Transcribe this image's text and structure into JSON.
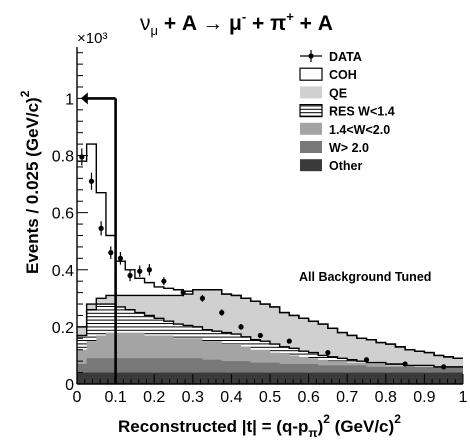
{
  "chart_data": {
    "type": "bar",
    "title_parts": {
      "nu": "ν",
      "nu_sub": "μ",
      "mid1": " + A → μ",
      "mu_sup": "-",
      "mid2": " + π",
      "pi_sup": "+",
      "end": " + A"
    },
    "xlabel_parts": {
      "main": "Reconstructed |t| = (q-p",
      "sub": "π",
      "close": ")",
      "sup": "2",
      "unit": " (GeV/c)",
      "unit_sup": "2"
    },
    "ylabel_parts": {
      "main": "Events / 0.025 (GeV/c)",
      "sup": "2"
    },
    "y_multiplier": "×10³",
    "annotation": "All Background Tuned",
    "xlim": [
      0,
      1.0
    ],
    "ylim": [
      0,
      1.18
    ],
    "x_ticks": [
      0,
      0.1,
      0.2,
      0.3,
      0.4,
      0.5,
      0.6,
      0.7,
      0.8,
      0.9,
      1.0
    ],
    "x_tick_labels": [
      "0",
      "0.1",
      "0.2",
      "0.3",
      "0.4",
      "0.5",
      "0.6",
      "0.7",
      "0.8",
      "0.9",
      "1"
    ],
    "y_ticks": [
      0,
      0.2,
      0.4,
      0.6,
      0.8,
      1.0
    ],
    "y_tick_labels": [
      "0",
      "0.2",
      "0.4",
      "0.6",
      "0.8",
      "1"
    ],
    "cut_x": 0.1,
    "grid": false,
    "legend_position": "top-right",
    "legend": [
      {
        "name": "DATA",
        "style": "marker"
      },
      {
        "name": "COH",
        "style": "open"
      },
      {
        "name": "QE",
        "style": "fill",
        "color": "#d0d0d0"
      },
      {
        "name": "RES W<1.4",
        "style": "hatch"
      },
      {
        "name": "1.4<W<2.0",
        "style": "fill",
        "color": "#a4a4a4"
      },
      {
        "name": "W> 2.0",
        "style": "fill",
        "color": "#787878"
      },
      {
        "name": "Other",
        "style": "fill",
        "color": "#3a3a3a"
      }
    ],
    "bin_width": 0.025,
    "bin_edges_start": 0.0,
    "stack_components": {
      "other": [
        0.04,
        0.04,
        0.04,
        0.04,
        0.04,
        0.04,
        0.04,
        0.04,
        0.04,
        0.04,
        0.04,
        0.04,
        0.04,
        0.04,
        0.04,
        0.04,
        0.04,
        0.04,
        0.04,
        0.04,
        0.04,
        0.04,
        0.04,
        0.04,
        0.04,
        0.04,
        0.04,
        0.04,
        0.04,
        0.04,
        0.04,
        0.04,
        0.04,
        0.04,
        0.04,
        0.04,
        0.04,
        0.04,
        0.04,
        0.04
      ],
      "w_gt_2": [
        0.03,
        0.05,
        0.05,
        0.05,
        0.05,
        0.05,
        0.05,
        0.05,
        0.05,
        0.05,
        0.05,
        0.05,
        0.05,
        0.045,
        0.045,
        0.04,
        0.04,
        0.04,
        0.035,
        0.035,
        0.035,
        0.03,
        0.03,
        0.03,
        0.03,
        0.025,
        0.025,
        0.025,
        0.025,
        0.025,
        0.02,
        0.02,
        0.02,
        0.02,
        0.02,
        0.02,
        0.02,
        0.02,
        0.02,
        0.02
      ]
    },
    "stack_tops": {
      "w_gt_2": [
        0.07,
        0.09,
        0.09,
        0.09,
        0.09,
        0.09,
        0.09,
        0.09,
        0.09,
        0.09,
        0.09,
        0.09,
        0.09,
        0.085,
        0.085,
        0.08,
        0.08,
        0.08,
        0.075,
        0.075,
        0.075,
        0.07,
        0.07,
        0.07,
        0.07,
        0.065,
        0.065,
        0.065,
        0.065,
        0.065,
        0.06,
        0.06,
        0.06,
        0.06,
        0.06,
        0.06,
        0.06,
        0.06,
        0.06,
        0.06
      ],
      "res_mid": [
        0.12,
        0.15,
        0.17,
        0.18,
        0.18,
        0.18,
        0.18,
        0.17,
        0.17,
        0.17,
        0.16,
        0.16,
        0.16,
        0.15,
        0.15,
        0.14,
        0.14,
        0.13,
        0.12,
        0.12,
        0.11,
        0.105,
        0.1,
        0.095,
        0.09,
        0.085,
        0.08,
        0.08,
        0.075,
        0.075,
        0.07,
        0.07,
        0.065,
        0.065,
        0.065,
        0.06,
        0.06,
        0.06,
        0.06,
        0.06
      ],
      "res_low": [
        0.17,
        0.26,
        0.28,
        0.28,
        0.27,
        0.26,
        0.25,
        0.24,
        0.23,
        0.22,
        0.21,
        0.205,
        0.2,
        0.19,
        0.185,
        0.18,
        0.175,
        0.165,
        0.155,
        0.15,
        0.14,
        0.13,
        0.125,
        0.115,
        0.11,
        0.1,
        0.095,
        0.09,
        0.085,
        0.08,
        0.075,
        0.075,
        0.07,
        0.07,
        0.065,
        0.065,
        0.065,
        0.06,
        0.06,
        0.06
      ],
      "qe": [
        0.2,
        0.28,
        0.3,
        0.31,
        0.31,
        0.31,
        0.31,
        0.31,
        0.31,
        0.31,
        0.31,
        0.315,
        0.33,
        0.33,
        0.33,
        0.315,
        0.31,
        0.3,
        0.29,
        0.28,
        0.27,
        0.25,
        0.24,
        0.23,
        0.22,
        0.21,
        0.195,
        0.18,
        0.17,
        0.16,
        0.155,
        0.145,
        0.14,
        0.13,
        0.12,
        0.115,
        0.11,
        0.1,
        0.095,
        0.09
      ],
      "coh": [
        0.78,
        0.84,
        0.67,
        0.52,
        0.43,
        0.4,
        0.37,
        0.355,
        0.34,
        0.335,
        0.33,
        0.325,
        0.33,
        0.33,
        0.33,
        0.315,
        0.31,
        0.3,
        0.29,
        0.28,
        0.27,
        0.25,
        0.24,
        0.23,
        0.22,
        0.21,
        0.195,
        0.18,
        0.17,
        0.16,
        0.155,
        0.145,
        0.14,
        0.13,
        0.12,
        0.115,
        0.11,
        0.1,
        0.095,
        0.09
      ]
    },
    "data_points": {
      "x": [
        0.0125,
        0.0375,
        0.0625,
        0.0875,
        0.1125,
        0.1375,
        0.1625,
        0.1875,
        0.225,
        0.275,
        0.325,
        0.375,
        0.425,
        0.475,
        0.55,
        0.65,
        0.75,
        0.85,
        0.95
      ],
      "y": [
        0.795,
        0.71,
        0.545,
        0.46,
        0.44,
        0.38,
        0.395,
        0.4,
        0.36,
        0.32,
        0.3,
        0.25,
        0.2,
        0.17,
        0.15,
        0.11,
        0.085,
        0.07,
        0.06
      ],
      "err": [
        0.03,
        0.03,
        0.025,
        0.022,
        0.022,
        0.02,
        0.02,
        0.02,
        0.014,
        0.013,
        0.012,
        0.011,
        0.01,
        0.009,
        0.007,
        0.006,
        0.005,
        0.005,
        0.005
      ]
    }
  }
}
